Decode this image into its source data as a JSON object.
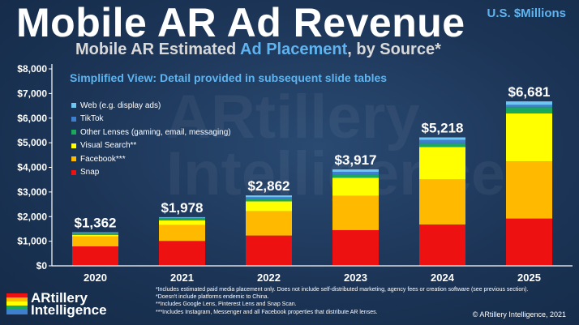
{
  "header": {
    "title": "Mobile AR Ad Revenue",
    "subtitle_pre": "Mobile AR Estimated ",
    "subtitle_highlight": "Ad Placement",
    "subtitle_post": ", by Source*",
    "unit": "U.S. $Millions",
    "note": "Simplified View: Detail provided in subsequent slide tables"
  },
  "chart_data": {
    "type": "bar",
    "stacked": true,
    "categories": [
      "2020",
      "2021",
      "2022",
      "2023",
      "2024",
      "2025"
    ],
    "totals_labels": [
      "$1,362",
      "$1,978",
      "$2,862",
      "$3,917",
      "$5,218",
      "$6,681"
    ],
    "ylim": [
      0,
      8000
    ],
    "yticks": [
      0,
      1000,
      2000,
      3000,
      4000,
      5000,
      6000,
      7000,
      8000
    ],
    "ytick_labels": [
      "$0",
      "$1,000",
      "$2,000",
      "$3,000",
      "$4,000",
      "$5,000",
      "$6,000",
      "$7,000",
      "$8,000"
    ],
    "series": [
      {
        "name": "Snap",
        "color": "#ee1111",
        "values": [
          790,
          1010,
          1230,
          1450,
          1680,
          1920
        ]
      },
      {
        "name": "Facebook***",
        "color": "#ffba00",
        "values": [
          400,
          650,
          990,
          1390,
          1830,
          2320
        ]
      },
      {
        "name": "Visual Search**",
        "color": "#ffff00",
        "values": [
          70,
          190,
          400,
          740,
          1320,
          1950
        ]
      },
      {
        "name": "Other Lenses (gaming, email, messaging)",
        "color": "#1aa85a",
        "values": [
          50,
          60,
          100,
          120,
          150,
          250
        ]
      },
      {
        "name": "TikTok",
        "color": "#3f7fd0",
        "values": [
          25,
          40,
          70,
          120,
          140,
          100
        ]
      },
      {
        "name": "Web (e.g. display ads)",
        "color": "#6fc6f2",
        "values": [
          27,
          28,
          72,
          97,
          98,
          141
        ]
      }
    ],
    "legend_order": [
      5,
      4,
      3,
      2,
      1,
      0
    ],
    "legend_position": "top-left"
  },
  "watermark": {
    "line1": "ARtillery",
    "line2": "Intelligence"
  },
  "footnotes": [
    "*Includes estimated paid media placement only. Does not include self-distributed marketing, agency fees or creation software (see previous section).",
    "*Doesn't include platforms endemic to China.",
    "**Includes Google Lens, Pinterest Lens and Snap Scan.",
    "***Includes Instagram, Messenger and all Facebook properties that distribute AR lenses."
  ],
  "logo": {
    "line1": "ARtillery",
    "line2": "Intelligence"
  },
  "copyright": "© ARtillery Intelligence, 2021"
}
